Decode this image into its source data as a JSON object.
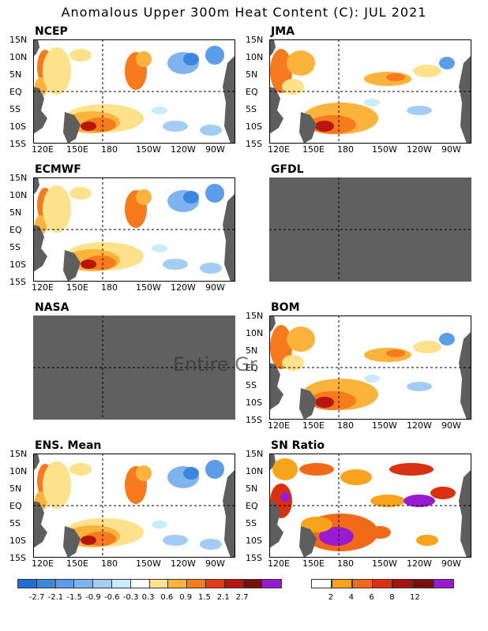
{
  "title": "Anomalous Upper 300m Heat Content (C): JUL 2021",
  "lat_labels": [
    "15N",
    "10N",
    "5N",
    "EQ",
    "5S",
    "10S",
    "15S"
  ],
  "lon_labels": [
    "120E",
    "150E",
    "180",
    "150W",
    "120W",
    "90W"
  ],
  "panels": [
    {
      "name": "NCEP",
      "col": 0,
      "row": 0,
      "data": true
    },
    {
      "name": "JMA",
      "col": 1,
      "row": 0,
      "data": true
    },
    {
      "name": "ECMWF",
      "col": 0,
      "row": 1,
      "data": true
    },
    {
      "name": "GFDL",
      "col": 1,
      "row": 1,
      "data": false
    },
    {
      "name": "NASA",
      "col": 0,
      "row": 2,
      "data": false
    },
    {
      "name": "BOM",
      "col": 1,
      "row": 2,
      "data": true
    },
    {
      "name": "ENS. Mean",
      "col": 0,
      "row": 3,
      "data": true
    },
    {
      "name": "SN Ratio",
      "col": 1,
      "row": 3,
      "data": true
    }
  ],
  "overlay_text": "Entire Gr",
  "anomaly_colorbar": {
    "labels": [
      "-2.7",
      "-2.1",
      "-1.5",
      "-0.9",
      "-0.6",
      "-0.3",
      "0.3",
      "0.6",
      "0.9",
      "1.5",
      "2.1",
      "2.7"
    ],
    "colors": [
      "#1c6fd6",
      "#3a86e0",
      "#5b9de8",
      "#7fb3ee",
      "#a3cdf4",
      "#c9ecf9",
      "#ffffff",
      "#fde28b",
      "#fbb33b",
      "#f77a1c",
      "#e63b12",
      "#b8160c",
      "#7a0e0a",
      "#9a1ad0"
    ]
  },
  "snr_colorbar": {
    "labels": [
      "2",
      "4",
      "6",
      "8",
      "12"
    ],
    "colors": [
      "#ffffff",
      "#f7a41c",
      "#f16a1a",
      "#d93012",
      "#a8120c",
      "#7a0e0a",
      "#9a1ad0"
    ]
  }
}
